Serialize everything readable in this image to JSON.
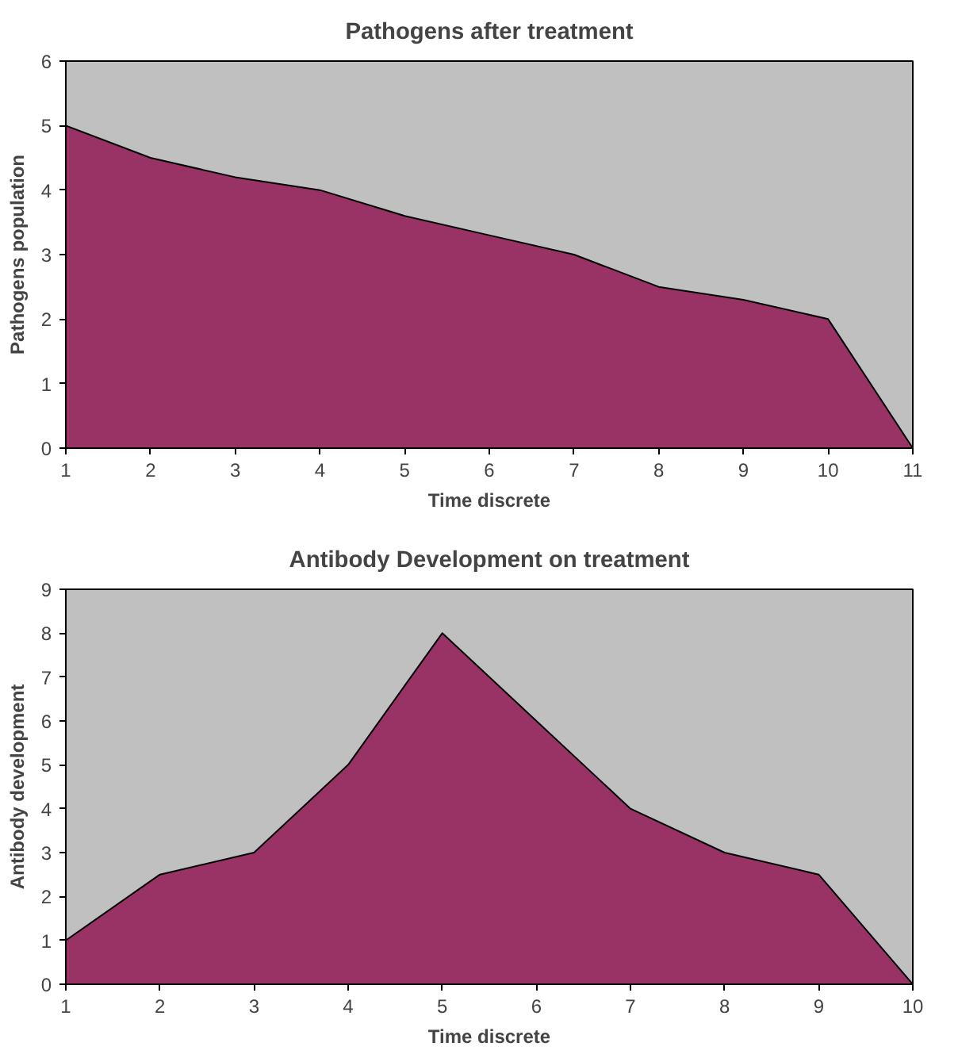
{
  "chart_data": [
    {
      "type": "area",
      "title": "Pathogens after treatment",
      "xlabel": "Time discrete",
      "ylabel": "Pathogens population",
      "x": [
        1,
        2,
        3,
        4,
        5,
        6,
        7,
        8,
        9,
        10,
        11
      ],
      "series": [
        {
          "color": "#993366",
          "values": [
            5,
            4.5,
            4.2,
            4,
            3.6,
            3.3,
            3,
            2.5,
            2.3,
            2,
            0
          ]
        }
      ],
      "xlim": [
        1,
        11
      ],
      "xticks": [
        1,
        2,
        3,
        4,
        5,
        6,
        7,
        8,
        9,
        10,
        11
      ],
      "ylim": [
        0,
        6
      ],
      "yticks": [
        0,
        1,
        2,
        3,
        4,
        5,
        6
      ],
      "grid": false
    },
    {
      "type": "area",
      "title": "Antibody Development on treatment",
      "xlabel": "Time discrete",
      "ylabel": "Antibody development",
      "x": [
        1,
        2,
        3,
        4,
        5,
        6,
        7,
        8,
        9,
        10
      ],
      "series": [
        {
          "color": "#993366",
          "values": [
            1,
            2.5,
            3,
            5,
            8,
            6,
            4,
            3,
            2.5,
            0
          ]
        }
      ],
      "xlim": [
        1,
        10
      ],
      "xticks": [
        1,
        2,
        3,
        4,
        5,
        6,
        7,
        8,
        9,
        10
      ],
      "ylim": [
        0,
        9
      ],
      "yticks": [
        0,
        1,
        2,
        3,
        4,
        5,
        6,
        7,
        8,
        9
      ],
      "grid": false
    }
  ]
}
